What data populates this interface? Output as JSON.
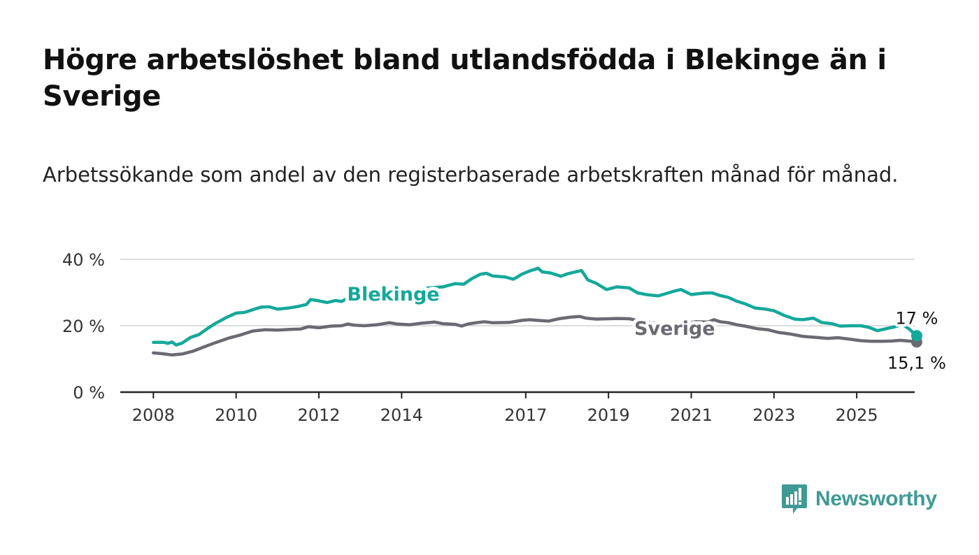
{
  "title": "Högre arbetslöshet bland utlandsfödda i Blekinge än i Sverige",
  "subtitle": "Arbetssökande som andel av den registerbaserade arbetskraften månad för månad.",
  "brand": {
    "name": "Newsworthy",
    "color": "#3f9a96"
  },
  "colors": {
    "blekinge": "#14a89a",
    "sverige": "#6b6a72",
    "grid": "#dddddd",
    "axis": "#222222"
  },
  "chart_data": {
    "type": "line",
    "x_ticks": [
      "2008",
      "2010",
      "2012",
      "2014",
      "2017",
      "2019",
      "2021",
      "2023",
      "2025"
    ],
    "y_ticks": [
      "0 %",
      "20 %",
      "40 %"
    ],
    "ylim": [
      0,
      40
    ],
    "xlim": [
      2007.2,
      2026.4
    ],
    "grid": "horizontal",
    "series": [
      {
        "name": "Blekinge",
        "end_label": "17 %",
        "points": [
          [
            2008.0,
            15.0
          ],
          [
            2008.25,
            15.0
          ],
          [
            2008.35,
            14.7
          ],
          [
            2008.45,
            15.1
          ],
          [
            2008.55,
            14.2
          ],
          [
            2008.7,
            14.8
          ],
          [
            2008.9,
            16.5
          ],
          [
            2009.1,
            17.3
          ],
          [
            2009.3,
            19.1
          ],
          [
            2009.5,
            20.7
          ],
          [
            2009.75,
            22.4
          ],
          [
            2010.0,
            23.8
          ],
          [
            2010.2,
            24.0
          ],
          [
            2010.4,
            24.8
          ],
          [
            2010.6,
            25.6
          ],
          [
            2010.8,
            25.7
          ],
          [
            2011.0,
            25.0
          ],
          [
            2011.25,
            25.3
          ],
          [
            2011.5,
            25.8
          ],
          [
            2011.7,
            26.4
          ],
          [
            2011.8,
            27.9
          ],
          [
            2012.0,
            27.5
          ],
          [
            2012.2,
            27.0
          ],
          [
            2012.4,
            27.6
          ],
          [
            2012.55,
            27.3
          ],
          [
            2012.75,
            28.7
          ],
          [
            2012.85,
            28.0
          ],
          [
            2013.1,
            27.9
          ],
          [
            2013.35,
            27.1
          ],
          [
            2013.5,
            28.0
          ],
          [
            2013.75,
            29.4
          ],
          [
            2014.0,
            30.3
          ],
          [
            2014.3,
            30.8
          ],
          [
            2014.6,
            31.3
          ],
          [
            2015.0,
            31.7
          ],
          [
            2015.3,
            32.7
          ],
          [
            2015.5,
            32.5
          ],
          [
            2015.7,
            34.2
          ],
          [
            2015.9,
            35.5
          ],
          [
            2016.05,
            35.8
          ],
          [
            2016.2,
            35.0
          ],
          [
            2016.5,
            34.7
          ],
          [
            2016.7,
            34.0
          ],
          [
            2016.9,
            35.5
          ],
          [
            2017.1,
            36.5
          ],
          [
            2017.3,
            37.3
          ],
          [
            2017.4,
            36.2
          ],
          [
            2017.6,
            35.9
          ],
          [
            2017.85,
            34.9
          ],
          [
            2018.0,
            35.6
          ],
          [
            2018.2,
            36.2
          ],
          [
            2018.35,
            36.6
          ],
          [
            2018.5,
            33.8
          ],
          [
            2018.7,
            32.8
          ],
          [
            2018.95,
            30.9
          ],
          [
            2019.2,
            31.7
          ],
          [
            2019.5,
            31.4
          ],
          [
            2019.7,
            29.9
          ],
          [
            2019.95,
            29.3
          ],
          [
            2020.2,
            29.0
          ],
          [
            2020.4,
            29.7
          ],
          [
            2020.55,
            30.3
          ],
          [
            2020.75,
            30.9
          ],
          [
            2021.0,
            29.4
          ],
          [
            2021.3,
            29.8
          ],
          [
            2021.5,
            29.9
          ],
          [
            2021.7,
            29.1
          ],
          [
            2021.9,
            28.5
          ],
          [
            2022.1,
            27.4
          ],
          [
            2022.3,
            26.6
          ],
          [
            2022.55,
            25.3
          ],
          [
            2022.8,
            25.0
          ],
          [
            2023.0,
            24.5
          ],
          [
            2023.25,
            23.1
          ],
          [
            2023.5,
            22.0
          ],
          [
            2023.7,
            21.8
          ],
          [
            2023.95,
            22.3
          ],
          [
            2024.15,
            21.0
          ],
          [
            2024.4,
            20.6
          ],
          [
            2024.6,
            19.9
          ],
          [
            2024.85,
            20.0
          ],
          [
            2025.1,
            20.0
          ],
          [
            2025.3,
            19.5
          ],
          [
            2025.5,
            18.5
          ],
          [
            2025.7,
            19.1
          ],
          [
            2025.9,
            19.6
          ],
          [
            2026.1,
            20.4
          ],
          [
            2026.25,
            19.2
          ],
          [
            2026.45,
            17.0
          ]
        ]
      },
      {
        "name": "Sverige",
        "end_label": "15,1 %",
        "points": [
          [
            2008.0,
            11.8
          ],
          [
            2008.2,
            11.6
          ],
          [
            2008.45,
            11.2
          ],
          [
            2008.7,
            11.5
          ],
          [
            2008.95,
            12.3
          ],
          [
            2009.2,
            13.5
          ],
          [
            2009.5,
            14.9
          ],
          [
            2009.8,
            16.2
          ],
          [
            2010.1,
            17.2
          ],
          [
            2010.4,
            18.4
          ],
          [
            2010.7,
            18.8
          ],
          [
            2011.0,
            18.7
          ],
          [
            2011.3,
            18.9
          ],
          [
            2011.55,
            19.0
          ],
          [
            2011.75,
            19.7
          ],
          [
            2012.0,
            19.4
          ],
          [
            2012.3,
            19.9
          ],
          [
            2012.55,
            20.0
          ],
          [
            2012.7,
            20.5
          ],
          [
            2012.85,
            20.2
          ],
          [
            2013.1,
            20.0
          ],
          [
            2013.4,
            20.3
          ],
          [
            2013.7,
            20.9
          ],
          [
            2013.9,
            20.5
          ],
          [
            2014.2,
            20.3
          ],
          [
            2014.5,
            20.8
          ],
          [
            2014.8,
            21.1
          ],
          [
            2015.0,
            20.6
          ],
          [
            2015.3,
            20.4
          ],
          [
            2015.45,
            19.9
          ],
          [
            2015.6,
            20.5
          ],
          [
            2015.8,
            20.9
          ],
          [
            2016.0,
            21.2
          ],
          [
            2016.2,
            20.9
          ],
          [
            2016.6,
            21.0
          ],
          [
            2016.9,
            21.6
          ],
          [
            2017.1,
            21.8
          ],
          [
            2017.3,
            21.6
          ],
          [
            2017.55,
            21.4
          ],
          [
            2017.8,
            22.1
          ],
          [
            2018.1,
            22.6
          ],
          [
            2018.3,
            22.8
          ],
          [
            2018.45,
            22.3
          ],
          [
            2018.7,
            22.0
          ],
          [
            2019.0,
            22.1
          ],
          [
            2019.2,
            22.2
          ],
          [
            2019.5,
            22.1
          ],
          [
            2019.7,
            21.6
          ],
          [
            2019.95,
            21.1
          ],
          [
            2020.2,
            20.6
          ],
          [
            2020.5,
            20.5
          ],
          [
            2020.8,
            20.6
          ],
          [
            2021.1,
            21.2
          ],
          [
            2021.4,
            21.1
          ],
          [
            2021.55,
            21.8
          ],
          [
            2021.7,
            21.2
          ],
          [
            2021.9,
            20.9
          ],
          [
            2022.1,
            20.3
          ],
          [
            2022.3,
            19.9
          ],
          [
            2022.6,
            19.1
          ],
          [
            2022.85,
            18.8
          ],
          [
            2023.1,
            18.0
          ],
          [
            2023.4,
            17.5
          ],
          [
            2023.7,
            16.8
          ],
          [
            2024.0,
            16.5
          ],
          [
            2024.3,
            16.2
          ],
          [
            2024.55,
            16.4
          ],
          [
            2024.8,
            16.0
          ],
          [
            2025.1,
            15.5
          ],
          [
            2025.35,
            15.3
          ],
          [
            2025.6,
            15.3
          ],
          [
            2025.85,
            15.4
          ],
          [
            2026.05,
            15.6
          ],
          [
            2026.25,
            15.4
          ],
          [
            2026.45,
            15.1
          ]
        ]
      }
    ]
  }
}
